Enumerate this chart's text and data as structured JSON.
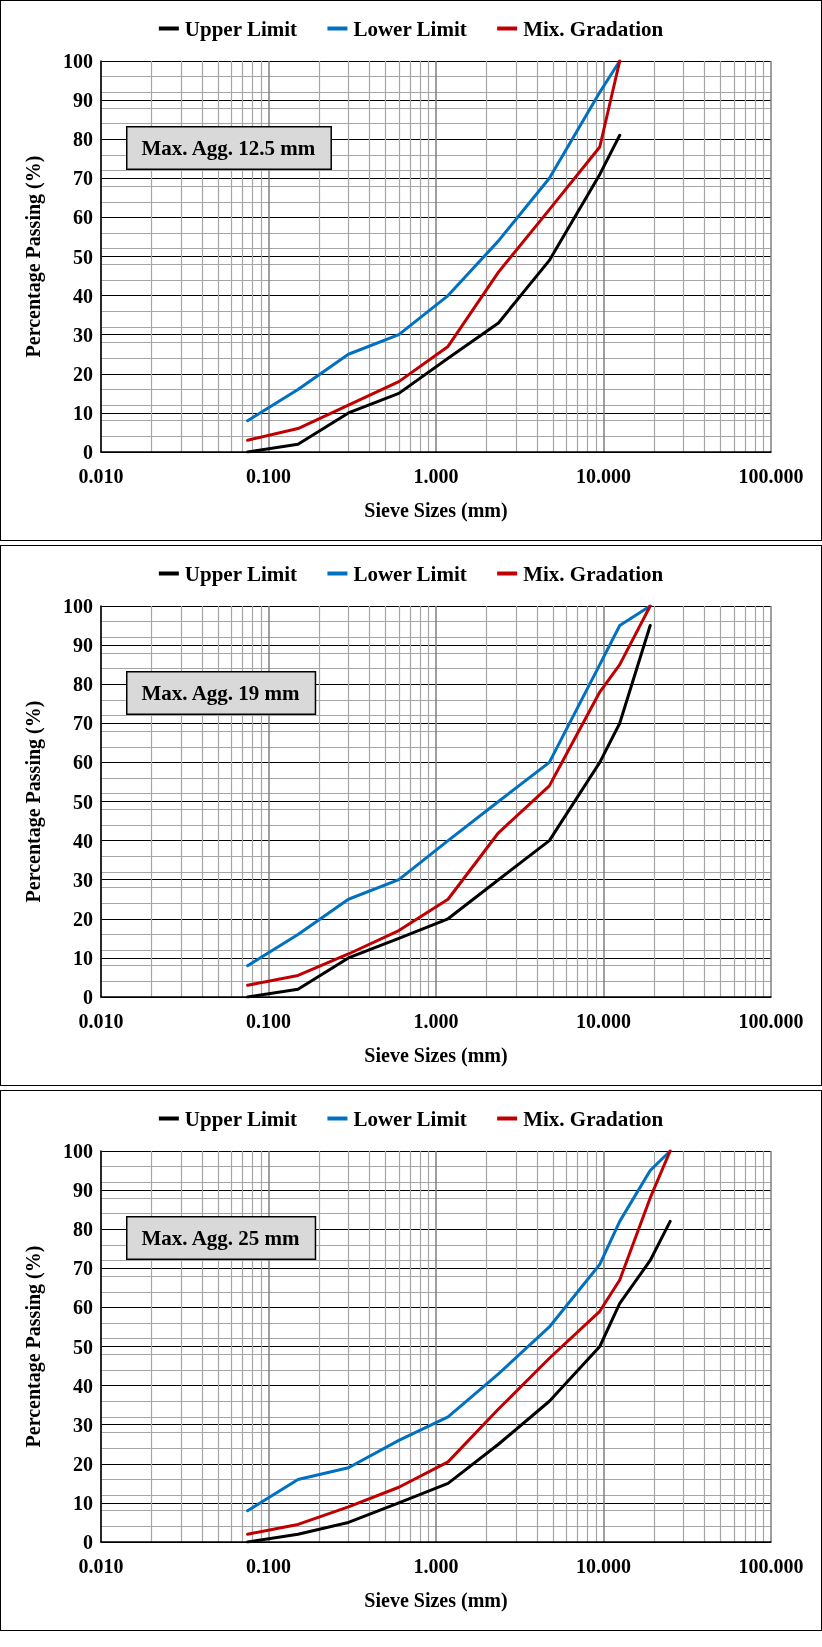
{
  "chart_data": [
    {
      "type": "line",
      "xlabel": "Sieve Sizes (mm)",
      "ylabel": "Percentage Passing (%)",
      "annotations": [
        "Max. Agg. 12.5 mm"
      ],
      "log": "x",
      "grid": true,
      "legend": "top",
      "marker": "none",
      "line_style": "solid",
      "x": [
        0.075,
        0.15,
        0.3,
        0.6,
        1.18,
        2.36,
        4.75,
        9.5,
        12.5
      ],
      "xlim": [
        0.01,
        100
      ],
      "xticks": [
        {
          "value": 0.01,
          "label": "0.010"
        },
        {
          "value": 0.1,
          "label": "0.100"
        },
        {
          "value": 1,
          "label": "1.000"
        },
        {
          "value": 10,
          "label": "10.000"
        },
        {
          "value": 100,
          "label": "100.000"
        }
      ],
      "ylim": [
        0,
        100
      ],
      "yticks": [
        0,
        10,
        20,
        30,
        40,
        50,
        60,
        70,
        80,
        90,
        100
      ],
      "series": [
        {
          "name": "Upper Limit",
          "color": "#000000",
          "values": [
            0,
            2,
            10,
            15,
            24,
            33,
            49,
            71,
            81
          ]
        },
        {
          "name": "Lower Limit",
          "color": "#0070c0",
          "values": [
            8,
            16,
            25,
            30,
            40,
            54,
            70,
            92,
            100
          ]
        },
        {
          "name": "Mix. Gradation",
          "color": "#c00000",
          "values": [
            3,
            6,
            12,
            18,
            27,
            46,
            62,
            78,
            100
          ]
        }
      ]
    },
    {
      "type": "line",
      "xlabel": "Sieve Sizes (mm)",
      "ylabel": "Percentage Passing (%)",
      "annotations": [
        "Max. Agg. 19 mm"
      ],
      "log": "x",
      "grid": true,
      "legend": "top",
      "marker": "none",
      "line_style": "solid",
      "x": [
        0.075,
        0.15,
        0.3,
        0.6,
        1.18,
        2.36,
        4.75,
        9.5,
        12.5,
        19
      ],
      "xlim": [
        0.01,
        100
      ],
      "xticks": [
        {
          "value": 0.01,
          "label": "0.010"
        },
        {
          "value": 0.1,
          "label": "0.100"
        },
        {
          "value": 1,
          "label": "1.000"
        },
        {
          "value": 10,
          "label": "10.000"
        },
        {
          "value": 100,
          "label": "100.000"
        }
      ],
      "ylim": [
        0,
        100
      ],
      "yticks": [
        0,
        10,
        20,
        30,
        40,
        50,
        60,
        70,
        80,
        90,
        100
      ],
      "series": [
        {
          "name": "Upper Limit",
          "color": "#000000",
          "values": [
            0,
            2,
            10,
            15,
            20,
            30,
            40,
            60,
            70,
            95
          ]
        },
        {
          "name": "Lower Limit",
          "color": "#0070c0",
          "values": [
            8,
            16,
            25,
            30,
            40,
            50,
            60,
            85,
            95,
            100
          ]
        },
        {
          "name": "Mix. Gradation",
          "color": "#c00000",
          "values": [
            3,
            5.5,
            11,
            17,
            25,
            42,
            54,
            78,
            85,
            100
          ]
        }
      ]
    },
    {
      "type": "line",
      "xlabel": "Sieve Sizes (mm)",
      "ylabel": "Percentage Passing (%)",
      "annotations": [
        "Max. Agg. 25 mm"
      ],
      "log": "x",
      "grid": true,
      "legend": "top",
      "marker": "none",
      "line_style": "solid",
      "x": [
        0.075,
        0.15,
        0.3,
        0.6,
        1.18,
        2.36,
        4.75,
        9.5,
        12.5,
        19,
        25
      ],
      "xlim": [
        0.01,
        100
      ],
      "xticks": [
        {
          "value": 0.01,
          "label": "0.010"
        },
        {
          "value": 0.1,
          "label": "0.100"
        },
        {
          "value": 1,
          "label": "1.000"
        },
        {
          "value": 10,
          "label": "10.000"
        },
        {
          "value": 100,
          "label": "100.000"
        }
      ],
      "ylim": [
        0,
        100
      ],
      "yticks": [
        0,
        10,
        20,
        30,
        40,
        50,
        60,
        70,
        80,
        90,
        100
      ],
      "series": [
        {
          "name": "Upper Limit",
          "color": "#000000",
          "values": [
            0,
            2,
            5,
            10,
            15,
            25,
            36,
            50,
            61,
            72,
            82
          ]
        },
        {
          "name": "Lower Limit",
          "color": "#0070c0",
          "values": [
            8,
            16,
            19,
            26,
            32,
            43,
            55,
            71,
            82,
            95,
            100
          ]
        },
        {
          "name": "Mix. Gradation",
          "color": "#c00000",
          "values": [
            2,
            4.5,
            9,
            14,
            20.5,
            34,
            47,
            59,
            67,
            88,
            100
          ]
        }
      ]
    }
  ]
}
